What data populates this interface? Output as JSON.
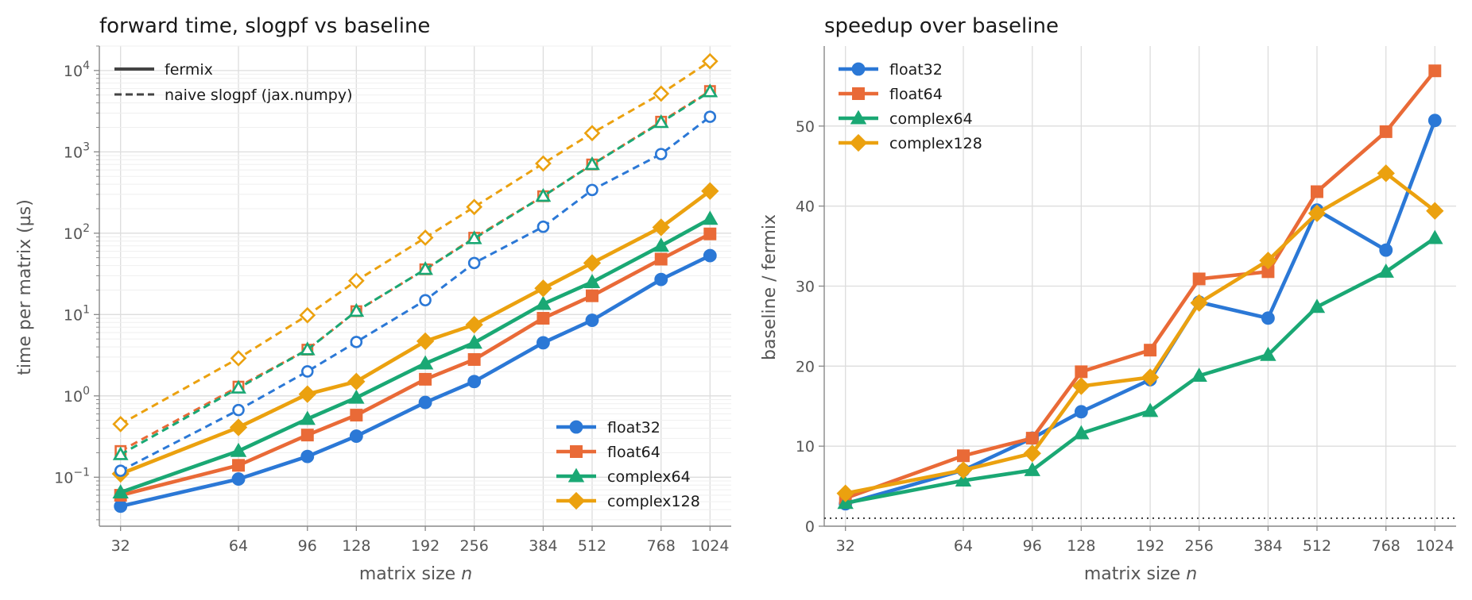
{
  "colors": {
    "float32": "#2b78d6",
    "float64": "#e96a37",
    "complex64": "#1aa874",
    "complex128": "#eba10f",
    "grid": "#dddddd",
    "axis": "#888888",
    "text": "#555555"
  },
  "chart_data": [
    {
      "type": "line",
      "title": "forward time, slogpf vs baseline",
      "xlabel_prefix": "matrix size",
      "xlabel_var": "n",
      "ylabel": "time per matrix (µs)",
      "xscale": "log2",
      "yscale": "log10",
      "x": [
        32,
        64,
        96,
        128,
        192,
        256,
        384,
        512,
        768,
        1024
      ],
      "xticks": [
        "32",
        "64",
        "96",
        "128",
        "192",
        "256",
        "384",
        "512",
        "768",
        "1024"
      ],
      "ylim": [
        0.025,
        20000
      ],
      "yticks": [
        {
          "value": 0.1,
          "base": "10",
          "exp": "−1"
        },
        {
          "value": 1,
          "base": "10",
          "exp": "0"
        },
        {
          "value": 10,
          "base": "10",
          "exp": "1"
        },
        {
          "value": 100,
          "base": "10",
          "exp": "2"
        },
        {
          "value": 1000,
          "base": "10",
          "exp": "3"
        },
        {
          "value": 10000,
          "base": "10",
          "exp": "4"
        }
      ],
      "grid": true,
      "style_legend": {
        "placement": "top-left",
        "entries": [
          {
            "label": "fermix",
            "dash": "solid"
          },
          {
            "label": "naive slogpf (jax.numpy)",
            "dash": "dashed"
          }
        ]
      },
      "series_legend": {
        "placement": "bottom-right",
        "entries": [
          "float32",
          "float64",
          "complex64",
          "complex128"
        ]
      },
      "series": [
        {
          "name": "float32",
          "marker": "circle",
          "style": "fermix",
          "values": [
            0.044,
            0.095,
            0.18,
            0.32,
            0.83,
            1.5,
            4.5,
            8.5,
            27,
            53
          ]
        },
        {
          "name": "float64",
          "marker": "square",
          "style": "fermix",
          "values": [
            0.06,
            0.14,
            0.33,
            0.58,
            1.6,
            2.8,
            9,
            17,
            48,
            98
          ]
        },
        {
          "name": "complex64",
          "marker": "triangle",
          "style": "fermix",
          "values": [
            0.065,
            0.21,
            0.52,
            0.95,
            2.5,
            4.5,
            13.5,
            25,
            70,
            150
          ]
        },
        {
          "name": "complex128",
          "marker": "diamond",
          "style": "fermix",
          "values": [
            0.11,
            0.41,
            1.05,
            1.5,
            4.7,
            7.5,
            21,
            43,
            118,
            330
          ]
        },
        {
          "name": "float32",
          "marker": "circle",
          "style": "naive",
          "values": [
            0.12,
            0.67,
            2,
            4.6,
            15,
            43,
            120,
            340,
            940,
            2700
          ]
        },
        {
          "name": "float64",
          "marker": "square",
          "style": "naive",
          "values": [
            0.21,
            1.3,
            3.7,
            11,
            36,
            88,
            285,
            700,
            2350,
            5600
          ]
        },
        {
          "name": "complex64",
          "marker": "triangle",
          "style": "naive",
          "values": [
            0.19,
            1.25,
            3.7,
            11,
            36,
            86,
            285,
            700,
            2300,
            5500
          ]
        },
        {
          "name": "complex128",
          "marker": "diamond",
          "style": "naive",
          "values": [
            0.45,
            2.9,
            9.8,
            26,
            88,
            210,
            720,
            1700,
            5200,
            13000
          ]
        }
      ]
    },
    {
      "type": "line",
      "title": "speedup over baseline",
      "xlabel_prefix": "matrix size",
      "xlabel_var": "n",
      "ylabel": "baseline / fermix",
      "xscale": "log2",
      "yscale": "linear",
      "x": [
        32,
        64,
        96,
        128,
        192,
        256,
        384,
        512,
        768,
        1024
      ],
      "xticks": [
        "32",
        "64",
        "96",
        "128",
        "192",
        "256",
        "384",
        "512",
        "768",
        "1024"
      ],
      "ylim": [
        0,
        60
      ],
      "yticks": [
        0,
        10,
        20,
        30,
        40,
        50
      ],
      "reference_line": 1,
      "grid": true,
      "series_legend": {
        "placement": "top-left",
        "entries": [
          "float32",
          "float64",
          "complex64",
          "complex128"
        ]
      },
      "series": [
        {
          "name": "float32",
          "marker": "circle",
          "values": [
            2.8,
            7,
            11,
            14.3,
            18.3,
            28,
            26,
            39.5,
            34.5,
            50.7
          ]
        },
        {
          "name": "float64",
          "marker": "square",
          "values": [
            3.5,
            8.8,
            11,
            19.3,
            22,
            30.9,
            31.8,
            41.8,
            49.3,
            56.9
          ]
        },
        {
          "name": "complex64",
          "marker": "triangle",
          "values": [
            2.9,
            5.7,
            7,
            11.6,
            14.4,
            18.8,
            21.4,
            27.4,
            31.8,
            36
          ]
        },
        {
          "name": "complex128",
          "marker": "diamond",
          "values": [
            4.1,
            7,
            9.1,
            17.5,
            18.6,
            27.9,
            33.2,
            39.1,
            44.1,
            39.4
          ]
        }
      ]
    }
  ]
}
